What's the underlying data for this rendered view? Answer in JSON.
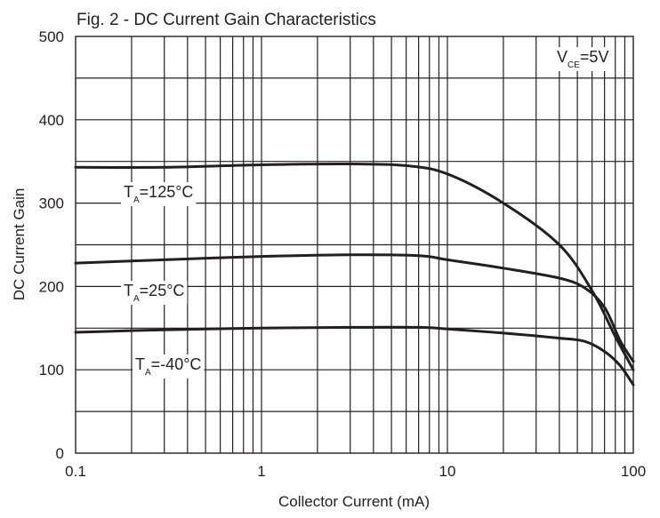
{
  "chart_data": {
    "type": "line",
    "title": "Fig. 2 - DC Current Gain Characteristics",
    "xlabel": "Collector Current (mA)",
    "ylabel": "DC Current Gain",
    "xscale": "log",
    "xlim": [
      0.1,
      100
    ],
    "ylim": [
      0,
      500
    ],
    "x_ticks": [
      0.1,
      1,
      10,
      100
    ],
    "x_tick_labels": [
      "0.1",
      "1",
      "10",
      "100"
    ],
    "y_ticks": [
      0,
      100,
      200,
      300,
      400,
      500
    ],
    "y_tick_labels": [
      "0",
      "100",
      "200",
      "300",
      "400",
      "500"
    ],
    "grid": true,
    "condition": {
      "base": "V",
      "sub": "CE",
      "rest": "=5V"
    },
    "series": [
      {
        "name": {
          "base": "T",
          "sub": "A",
          "rest": "=125°C"
        },
        "x": [
          0.1,
          0.3,
          1,
          3,
          6,
          10,
          20,
          40,
          60,
          80,
          100
        ],
        "y": [
          343,
          343,
          346,
          347,
          345,
          335,
          300,
          250,
          195,
          140,
          100
        ]
      },
      {
        "name": {
          "base": "T",
          "sub": "A",
          "rest": "=25°C"
        },
        "x": [
          0.1,
          0.3,
          1,
          3,
          7,
          10,
          20,
          40,
          55,
          70,
          85,
          100
        ],
        "y": [
          228,
          232,
          236,
          238,
          237,
          232,
          222,
          210,
          198,
          175,
          135,
          110
        ]
      },
      {
        "name": {
          "base": "T",
          "sub": "A",
          "rest": "=-40°C"
        },
        "x": [
          0.1,
          0.3,
          1,
          3,
          7,
          10,
          20,
          40,
          55,
          70,
          85,
          100
        ],
        "y": [
          145,
          148,
          150,
          151,
          151,
          149,
          144,
          138,
          134,
          122,
          105,
          82
        ]
      }
    ]
  }
}
